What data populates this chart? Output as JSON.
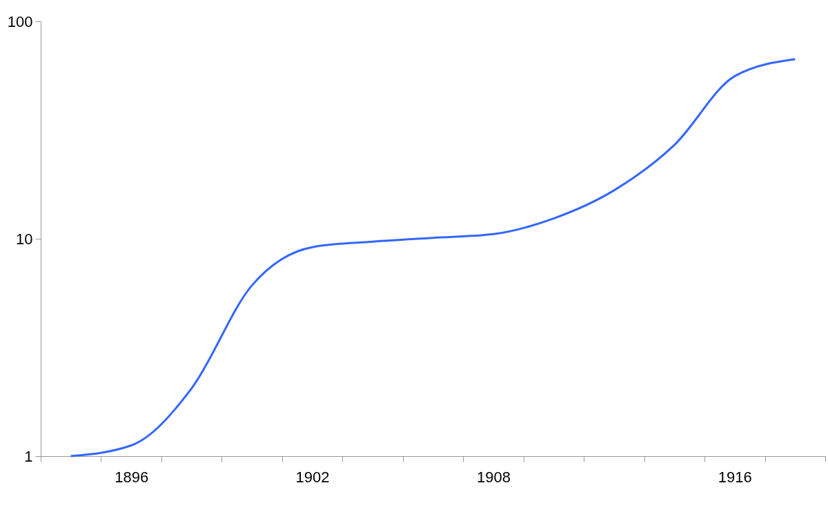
{
  "chart_data": {
    "type": "line",
    "categories": [
      null,
      "1896",
      null,
      null,
      "1902",
      null,
      null,
      "1908",
      null,
      null,
      null,
      "1916",
      null
    ],
    "series": [
      {
        "color": "#3366ff",
        "values": [
          1.0,
          1.12,
          2.05,
          6.1,
          9.15,
          9.7,
          10.1,
          10.5,
          12.4,
          16.7,
          27,
          56,
          67
        ]
      }
    ],
    "log": "y",
    "ylim": [
      1,
      100
    ],
    "yticks": [
      1,
      10,
      100
    ],
    "grid": false,
    "marker": "none",
    "line_style": "solid"
  }
}
